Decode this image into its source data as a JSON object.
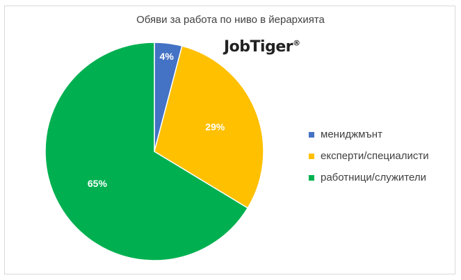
{
  "chart_data": {
    "type": "pie",
    "title": "Обяви за работа по ниво в йерархията",
    "categories": [
      "мениджмънт",
      "експерти/специалисти",
      "работници/служители"
    ],
    "values": [
      4,
      29,
      65
    ],
    "labels": [
      "4%",
      "29%",
      "65%"
    ],
    "colors": [
      "#4472C4",
      "#FFC000",
      "#00B050"
    ],
    "legend_position": "right",
    "label_color": "#ffffff"
  },
  "logo": {
    "text": "JobTiger",
    "mark": "®"
  }
}
